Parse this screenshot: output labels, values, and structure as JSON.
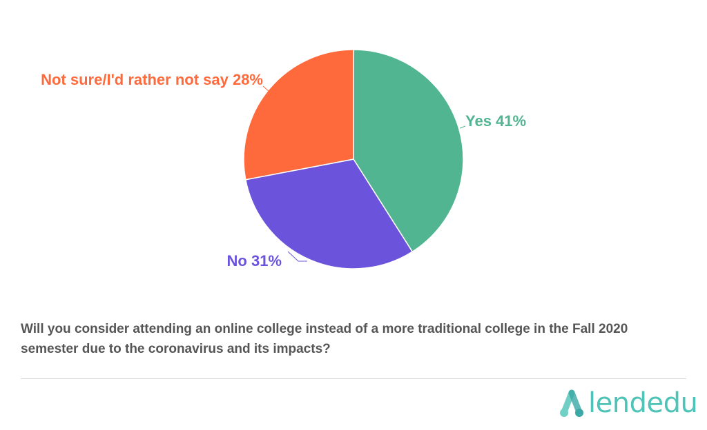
{
  "chart_data": {
    "type": "pie",
    "slices": [
      {
        "name": "Yes",
        "value": 41,
        "label": "Yes 41%",
        "color": "#52b592"
      },
      {
        "name": "No",
        "value": 31,
        "label": "No 31%",
        "color": "#6c53dc"
      },
      {
        "name": "Not sure/I'd rather not say",
        "value": 28,
        "label": "Not sure/I'd rather not say 28%",
        "color": "#fe6a3c"
      }
    ],
    "start_angle": "12 o'clock",
    "direction": "clockwise",
    "slice_border_color": "#ffffff",
    "legend": "none (labels next to slices)"
  },
  "question": "Will you consider attending an online college instead of a more traditional college in the Fall 2020 semester due to the coronavirus and its impacts?",
  "question_color": "#555555",
  "logo": {
    "text": "lendedu",
    "icon": "lendedu-logo-icon",
    "color": "#4ec3b7"
  }
}
